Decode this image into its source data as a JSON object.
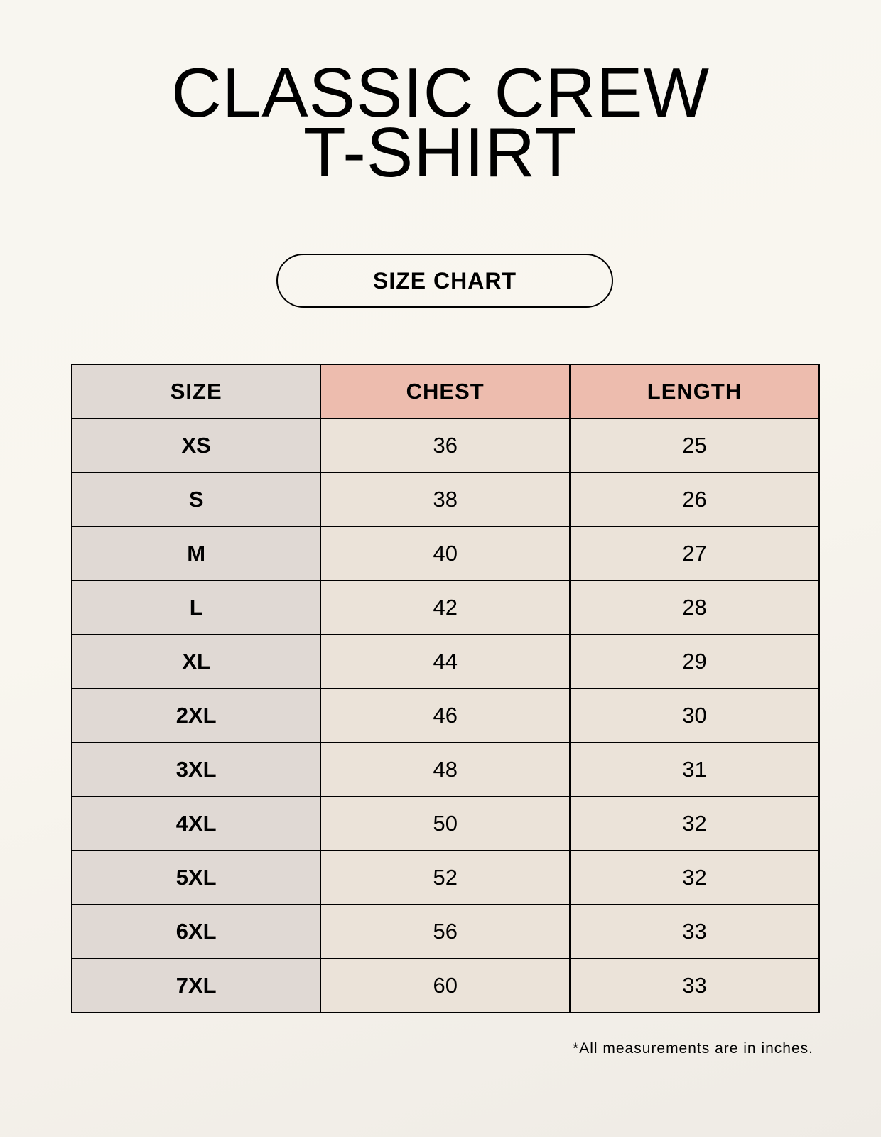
{
  "title_line1": "CLASSIC CREW",
  "title_line2": "T-SHIRT",
  "badge": "SIZE CHART",
  "table": {
    "headers": [
      "SIZE",
      "CHEST",
      "LENGTH"
    ],
    "rows": [
      [
        "XS",
        "36",
        "25"
      ],
      [
        "S",
        "38",
        "26"
      ],
      [
        "M",
        "40",
        "27"
      ],
      [
        "L",
        "42",
        "28"
      ],
      [
        "XL",
        "44",
        "29"
      ],
      [
        "2XL",
        "46",
        "30"
      ],
      [
        "3XL",
        "48",
        "31"
      ],
      [
        "4XL",
        "50",
        "32"
      ],
      [
        "5XL",
        "52",
        "32"
      ],
      [
        "6XL",
        "56",
        "33"
      ],
      [
        "7XL",
        "60",
        "33"
      ]
    ]
  },
  "footnote": "*All measurements are in inches.",
  "colors": {
    "header_highlight": "#edbcae",
    "size_column": "#e0d9d4",
    "value_cells": "#ebe3d9"
  }
}
